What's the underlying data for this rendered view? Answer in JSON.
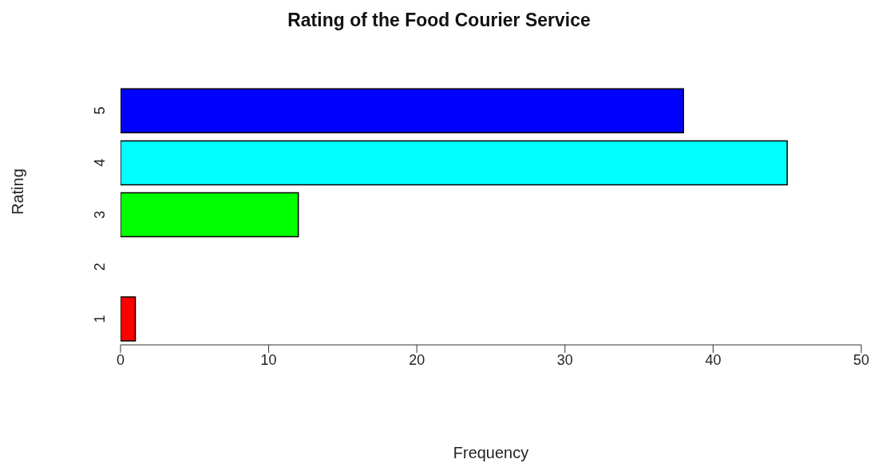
{
  "chart_data": {
    "type": "bar",
    "orientation": "horizontal",
    "title": "Rating of the Food Courier Service",
    "xlabel": "Frequency",
    "ylabel": "Rating",
    "categories": [
      "5",
      "4",
      "3",
      "2",
      "1"
    ],
    "values": [
      38,
      45,
      12,
      0,
      1
    ],
    "colors": [
      "#0000ff",
      "#00ffff",
      "#00ff00",
      "#ffff00",
      "#ff0000"
    ],
    "xlim": [
      0,
      50
    ],
    "xticks": [
      0,
      10,
      20,
      30,
      40,
      50
    ],
    "grid": false,
    "legend": false
  }
}
